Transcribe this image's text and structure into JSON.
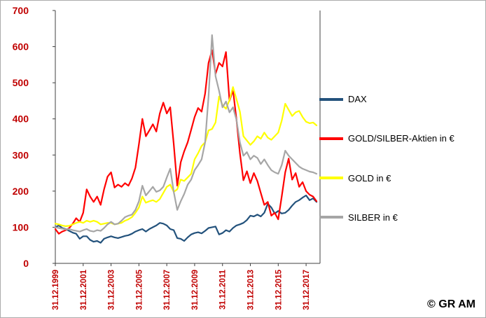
{
  "figure": {
    "watermark": "© GR AM"
  },
  "chart_data": {
    "type": "line",
    "title": "",
    "grid": false,
    "legend_position": "right",
    "axis_label_color": "#C00000",
    "axis_line_color": "#404040",
    "ylim": [
      0,
      700
    ],
    "y_ticks": [
      0,
      100,
      200,
      300,
      400,
      500,
      600,
      700
    ],
    "xlim": [
      2000,
      2019
    ],
    "x_tick_positions": [
      2000,
      2002,
      2004,
      2006,
      2008,
      2010,
      2012,
      2014,
      2016,
      2018
    ],
    "x_tick_labels": [
      "31.12.1999",
      "31.12.2001",
      "31.12.2003",
      "31.12.2005",
      "31.12.2007",
      "31.12.2009",
      "31.12.2011",
      "31.12.2013",
      "31.12.2015",
      "31.12.2017"
    ],
    "x_start": 2000,
    "x_step": 0.25,
    "series": [
      {
        "name": "DAX",
        "color": "#23527C",
        "values": [
          100,
          105,
          98,
          95,
          90,
          85,
          82,
          68,
          75,
          75,
          65,
          60,
          62,
          57,
          68,
          72,
          75,
          72,
          70,
          73,
          76,
          78,
          82,
          88,
          92,
          95,
          88,
          95,
          100,
          105,
          112,
          110,
          105,
          95,
          92,
          70,
          68,
          62,
          72,
          80,
          84,
          86,
          83,
          90,
          98,
          100,
          102,
          80,
          84,
          92,
          88,
          98,
          105,
          108,
          112,
          120,
          132,
          130,
          135,
          130,
          140,
          165,
          155,
          138,
          145,
          138,
          140,
          148,
          160,
          170,
          175,
          182,
          188,
          175,
          180,
          170
        ]
      },
      {
        "name": "GOLD/SILBER-Aktien in €",
        "color": "#FF0000",
        "values": [
          95,
          82,
          88,
          92,
          98,
          110,
          125,
          115,
          140,
          205,
          185,
          170,
          185,
          162,
          205,
          240,
          252,
          210,
          218,
          212,
          222,
          215,
          235,
          265,
          330,
          400,
          352,
          368,
          385,
          365,
          415,
          445,
          415,
          432,
          330,
          215,
          280,
          310,
          335,
          370,
          405,
          430,
          420,
          470,
          555,
          590,
          525,
          555,
          545,
          585,
          450,
          480,
          400,
          305,
          230,
          255,
          222,
          250,
          228,
          195,
          162,
          170,
          132,
          140,
          122,
          185,
          252,
          290,
          232,
          250,
          212,
          225,
          200,
          190,
          185,
          172
        ]
      },
      {
        "name": "GOLD in €",
        "color": "#FFFF00",
        "values": [
          110,
          108,
          105,
          103,
          104,
          108,
          112,
          115,
          112,
          118,
          115,
          118,
          115,
          108,
          110,
          112,
          112,
          108,
          110,
          112,
          118,
          122,
          128,
          140,
          155,
          185,
          168,
          172,
          175,
          170,
          178,
          195,
          212,
          218,
          198,
          205,
          232,
          228,
          238,
          248,
          288,
          305,
          325,
          335,
          368,
          372,
          390,
          462,
          438,
          428,
          452,
          488,
          455,
          420,
          352,
          340,
          328,
          338,
          352,
          345,
          362,
          348,
          342,
          352,
          362,
          395,
          442,
          425,
          408,
          418,
          422,
          405,
          392,
          388,
          390,
          382
        ]
      },
      {
        "name": "SILBER in €",
        "color": "#A6A6A6",
        "values": [
          100,
          98,
          96,
          94,
          95,
          92,
          90,
          88,
          92,
          95,
          90,
          88,
          92,
          90,
          98,
          108,
          115,
          108,
          110,
          118,
          128,
          132,
          135,
          148,
          172,
          215,
          188,
          200,
          212,
          198,
          202,
          212,
          238,
          262,
          198,
          148,
          172,
          192,
          218,
          232,
          258,
          272,
          288,
          335,
          462,
          632,
          518,
          478,
          432,
          448,
          418,
          432,
          398,
          335,
          298,
          308,
          288,
          298,
          292,
          275,
          288,
          272,
          258,
          252,
          248,
          272,
          312,
          298,
          288,
          278,
          268,
          262,
          258,
          254,
          252,
          248
        ]
      }
    ]
  }
}
